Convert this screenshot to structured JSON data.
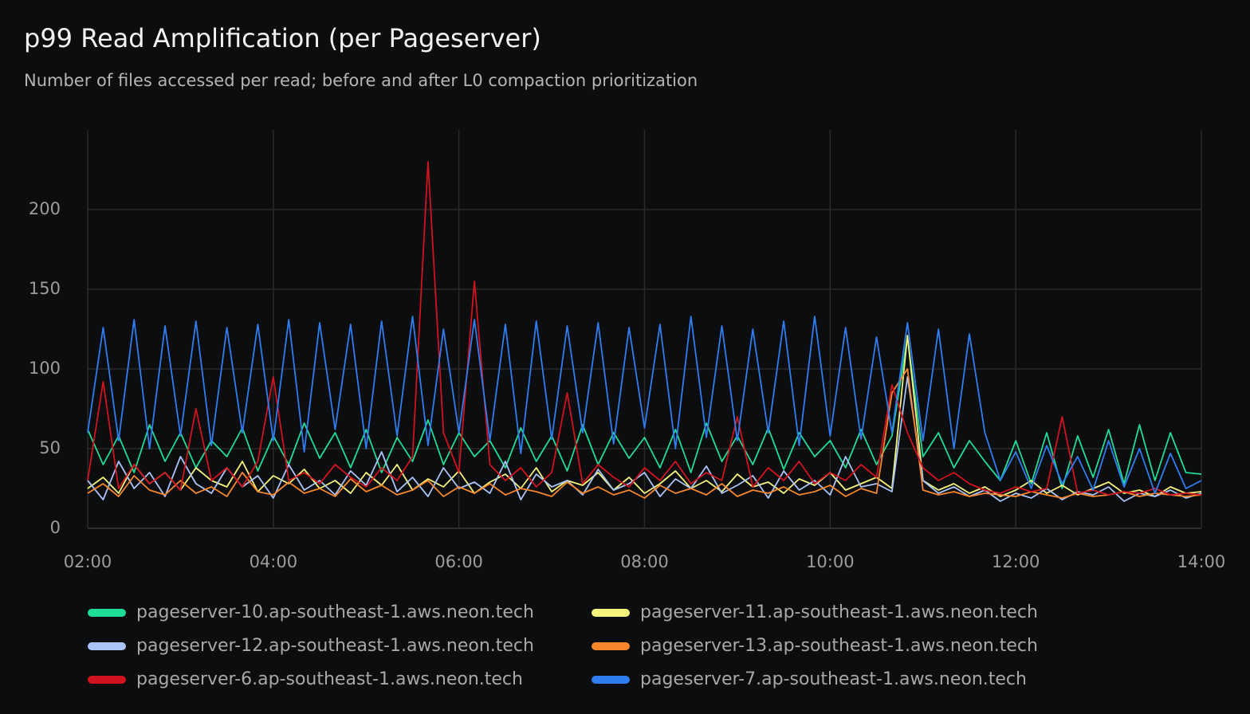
{
  "chart_data": {
    "type": "line",
    "title": "p99 Read Amplification (per Pageserver)",
    "subtitle": "Number of files accessed per read; before and after L0 compaction prioritization",
    "x": [
      "02:00",
      "02:10",
      "02:20",
      "02:30",
      "02:40",
      "02:50",
      "03:00",
      "03:10",
      "03:20",
      "03:30",
      "03:40",
      "03:50",
      "04:00",
      "04:10",
      "04:20",
      "04:30",
      "04:40",
      "04:50",
      "05:00",
      "05:10",
      "05:20",
      "05:30",
      "05:40",
      "05:50",
      "06:00",
      "06:10",
      "06:20",
      "06:30",
      "06:40",
      "06:50",
      "07:00",
      "07:10",
      "07:20",
      "07:30",
      "07:40",
      "07:50",
      "08:00",
      "08:10",
      "08:20",
      "08:30",
      "08:40",
      "08:50",
      "09:00",
      "09:10",
      "09:20",
      "09:30",
      "09:40",
      "09:50",
      "10:00",
      "10:10",
      "10:20",
      "10:30",
      "10:40",
      "10:50",
      "11:00",
      "11:10",
      "11:20",
      "11:30",
      "11:40",
      "11:50",
      "12:00",
      "12:10",
      "12:20",
      "12:30",
      "12:40",
      "12:50",
      "13:00",
      "13:10",
      "13:20",
      "13:30",
      "13:40",
      "13:50",
      "14:00"
    ],
    "xlim": [
      "02:00",
      "14:00"
    ],
    "xticks": [
      "02:00",
      "04:00",
      "06:00",
      "08:00",
      "10:00",
      "12:00",
      "14:00"
    ],
    "ylim": [
      0,
      250
    ],
    "yticks": [
      0,
      50,
      100,
      150,
      200
    ],
    "grid": true,
    "series": [
      {
        "name": "pageserver-10.ap-southeast-1.aws.neon.tech",
        "color": "#1fdc96",
        "values": [
          62,
          40,
          58,
          35,
          65,
          42,
          60,
          38,
          55,
          45,
          63,
          36,
          58,
          40,
          66,
          44,
          60,
          38,
          62,
          35,
          57,
          42,
          68,
          40,
          60,
          45,
          55,
          38,
          63,
          42,
          58,
          36,
          65,
          40,
          60,
          44,
          57,
          38,
          62,
          35,
          66,
          42,
          58,
          40,
          63,
          37,
          60,
          45,
          55,
          38,
          62,
          40,
          58,
          120,
          45,
          60,
          38,
          55,
          42,
          30,
          55,
          28,
          60,
          25,
          58,
          32,
          62,
          28,
          65,
          30,
          60,
          35,
          34
        ]
      },
      {
        "name": "pageserver-11.ap-southeast-1.aws.neon.tech",
        "color": "#f4f47c",
        "values": [
          25,
          32,
          22,
          40,
          28,
          35,
          24,
          38,
          30,
          26,
          42,
          23,
          33,
          28,
          37,
          25,
          30,
          22,
          35,
          27,
          40,
          24,
          31,
          26,
          36,
          22,
          29,
          34,
          25,
          38,
          23,
          30,
          27,
          35,
          24,
          32,
          22,
          28,
          36,
          25,
          30,
          23,
          34,
          26,
          29,
          22,
          31,
          27,
          35,
          24,
          28,
          32,
          25,
          121,
          30,
          24,
          28,
          22,
          26,
          20,
          24,
          30,
          22,
          27,
          21,
          25,
          29,
          22,
          24,
          20,
          26,
          22,
          23
        ]
      },
      {
        "name": "pageserver-12.ap-southeast-1.aws.neon.tech",
        "color": "#a9c3f7",
        "values": [
          30,
          18,
          42,
          25,
          35,
          20,
          45,
          28,
          22,
          38,
          26,
          33,
          19,
          40,
          24,
          30,
          21,
          36,
          27,
          48,
          23,
          32,
          20,
          38,
          25,
          29,
          22,
          42,
          18,
          34,
          26,
          30,
          21,
          37,
          24,
          28,
          35,
          20,
          31,
          25,
          39,
          22,
          27,
          33,
          19,
          36,
          24,
          30,
          21,
          45,
          26,
          28,
          23,
          95,
          30,
          22,
          26,
          20,
          24,
          17,
          22,
          19,
          25,
          18,
          23,
          21,
          26,
          17,
          22,
          20,
          24,
          19,
          22
        ]
      },
      {
        "name": "pageserver-13.ap-southeast-1.aws.neon.tech",
        "color": "#f5862c",
        "values": [
          22,
          28,
          20,
          33,
          24,
          21,
          30,
          22,
          26,
          20,
          35,
          23,
          21,
          29,
          22,
          25,
          20,
          31,
          23,
          27,
          21,
          24,
          30,
          20,
          26,
          22,
          28,
          21,
          25,
          23,
          20,
          29,
          22,
          26,
          21,
          24,
          19,
          27,
          22,
          25,
          21,
          28,
          20,
          24,
          22,
          26,
          21,
          23,
          27,
          20,
          25,
          22,
          85,
          100,
          24,
          21,
          23,
          20,
          22,
          21,
          20,
          23,
          21,
          19,
          22,
          20,
          21,
          23,
          20,
          22,
          21,
          20,
          21
        ]
      },
      {
        "name": "pageserver-6.ap-southeast-1.aws.neon.tech",
        "color": "#d0131f",
        "values": [
          30,
          92,
          25,
          40,
          28,
          35,
          24,
          75,
          30,
          38,
          26,
          42,
          95,
          30,
          35,
          28,
          40,
          32,
          26,
          38,
          30,
          45,
          230,
          60,
          35,
          155,
          40,
          30,
          38,
          26,
          35,
          85,
          28,
          40,
          32,
          26,
          38,
          30,
          42,
          28,
          35,
          30,
          70,
          26,
          38,
          30,
          42,
          28,
          35,
          30,
          40,
          32,
          90,
          60,
          38,
          30,
          35,
          28,
          24,
          22,
          26,
          23,
          25,
          70,
          22,
          24,
          21,
          23,
          22,
          25,
          21,
          22,
          21
        ]
      },
      {
        "name": "pageserver-7.ap-southeast-1.aws.neon.tech",
        "color": "#2f7df1",
        "values": [
          60,
          126,
          55,
          131,
          50,
          127,
          58,
          130,
          52,
          126,
          60,
          128,
          55,
          131,
          48,
          129,
          62,
          128,
          50,
          130,
          58,
          133,
          52,
          125,
          60,
          131,
          55,
          128,
          47,
          130,
          56,
          127,
          60,
          129,
          53,
          126,
          63,
          128,
          50,
          133,
          57,
          127,
          55,
          125,
          60,
          130,
          52,
          133,
          58,
          126,
          56,
          120,
          60,
          129,
          55,
          125,
          50,
          122,
          60,
          30,
          48,
          25,
          52,
          28,
          45,
          24,
          55,
          26,
          50,
          22,
          47,
          25,
          30
        ]
      }
    ]
  }
}
